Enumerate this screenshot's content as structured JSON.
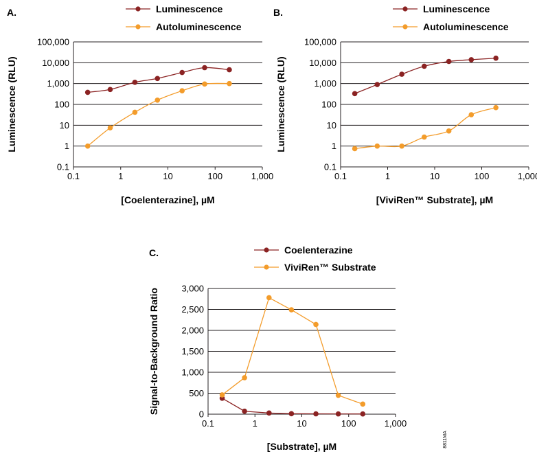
{
  "figure_id": "8811MA",
  "colors": {
    "dark_series": "#8b2323",
    "light_series": "#f39c2b",
    "grid": "#231f20"
  },
  "chart_data": [
    {
      "panel": "A.",
      "type": "line",
      "xscale": "log",
      "yscale": "log",
      "xlabel": "[Coelenterazine], µM",
      "ylabel": "Luminescence (RLU)",
      "xlim": [
        0.1,
        1000
      ],
      "ylim": [
        0.1,
        100000
      ],
      "x_tick_labels": [
        "0.1",
        "1",
        "10",
        "100",
        "1,000"
      ],
      "y_tick_labels": [
        "0.1",
        "1",
        "10",
        "100",
        "1,000",
        "10,000",
        "100,000"
      ],
      "grid": "horizontal",
      "legend_position": "top",
      "x": [
        0.2,
        0.6,
        2,
        6,
        20,
        60,
        200
      ],
      "series": [
        {
          "name": "Luminescence",
          "color": "#8b2323",
          "values": [
            380,
            520,
            1150,
            1750,
            3400,
            5800,
            4600
          ]
        },
        {
          "name": "Autoluminescence",
          "color": "#f39c2b",
          "values": [
            1,
            7.5,
            42,
            160,
            450,
            950,
            1000
          ]
        }
      ]
    },
    {
      "panel": "B.",
      "type": "line",
      "xscale": "log",
      "yscale": "log",
      "xlabel": "[ViviRen™ Substrate], µM",
      "ylabel": "Luminescence (RLU)",
      "xlim": [
        0.1,
        1000
      ],
      "ylim": [
        0.1,
        100000
      ],
      "x_tick_labels": [
        "0.1",
        "1",
        "10",
        "100",
        "1,000"
      ],
      "y_tick_labels": [
        "0.1",
        "1",
        "10",
        "100",
        "1,000",
        "10,000",
        "100,000"
      ],
      "grid": "horizontal",
      "legend_position": "top",
      "x": [
        0.2,
        0.6,
        2,
        6,
        20,
        60,
        200
      ],
      "series": [
        {
          "name": "Luminescence",
          "color": "#8b2323",
          "values": [
            330,
            900,
            2800,
            6800,
            11500,
            14000,
            16500
          ]
        },
        {
          "name": "Autoluminescence",
          "color": "#f39c2b",
          "values": [
            0.75,
            1,
            1,
            2.7,
            5.3,
            32,
            70
          ]
        }
      ]
    },
    {
      "panel": "C.",
      "type": "line",
      "xscale": "log",
      "yscale": "linear",
      "xlabel": "[Substrate], µM",
      "ylabel": "Signal-to-Background Ratio",
      "xlim": [
        0.1,
        1000
      ],
      "ylim": [
        0,
        3000
      ],
      "x_tick_labels": [
        "0.1",
        "1",
        "10",
        "100",
        "1,000"
      ],
      "y_tick_labels": [
        "0",
        "500",
        "1,000",
        "1,500",
        "2,000",
        "2,500",
        "3,000"
      ],
      "grid": "horizontal",
      "legend_position": "top",
      "x": [
        0.2,
        0.6,
        2,
        6,
        20,
        60,
        200
      ],
      "series": [
        {
          "name": "Coelenterazine",
          "color": "#8b2323",
          "values": [
            380,
            70,
            27,
            11,
            8,
            6,
            5
          ]
        },
        {
          "name": "ViviRen™ Substrate",
          "color": "#f39c2b",
          "values": [
            460,
            870,
            2780,
            2490,
            2140,
            450,
            240
          ]
        }
      ]
    }
  ]
}
